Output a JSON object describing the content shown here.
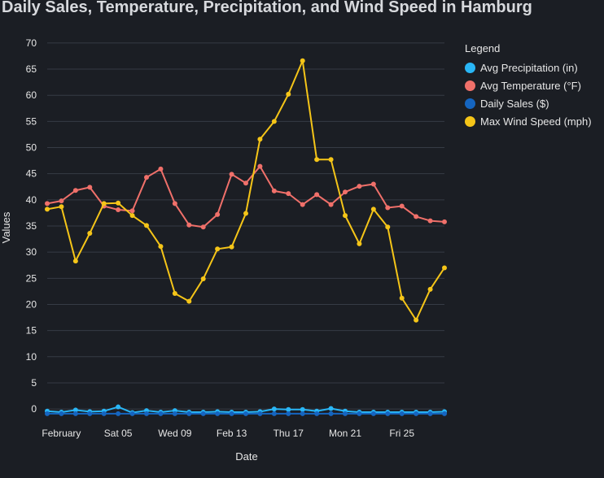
{
  "chart_data": {
    "type": "line",
    "title": "Daily Sales, Temperature, Precipitation, and Wind Speed in Hamburg",
    "xlabel": "Date",
    "ylabel": "Values",
    "ylim": [
      -2,
      72
    ],
    "yticks": [
      0,
      5,
      10,
      15,
      20,
      25,
      30,
      35,
      40,
      45,
      50,
      55,
      60,
      65,
      70
    ],
    "xlim": [
      "2022-01-31",
      "2022-02-28"
    ],
    "xticks": [
      {
        "date": "2022-02-01",
        "label": "February"
      },
      {
        "date": "2022-02-05",
        "label": "Sat 05"
      },
      {
        "date": "2022-02-09",
        "label": "Wed 09"
      },
      {
        "date": "2022-02-13",
        "label": "Feb 13"
      },
      {
        "date": "2022-02-17",
        "label": "Thu 17"
      },
      {
        "date": "2022-02-21",
        "label": "Mon 21"
      },
      {
        "date": "2022-02-25",
        "label": "Fri 25"
      }
    ],
    "grid": true,
    "legend_title": "Legend",
    "legend_position": "right",
    "x": [
      "2022-01-31",
      "2022-02-01",
      "2022-02-02",
      "2022-02-03",
      "2022-02-04",
      "2022-02-05",
      "2022-02-06",
      "2022-02-07",
      "2022-02-08",
      "2022-02-09",
      "2022-02-10",
      "2022-02-11",
      "2022-02-12",
      "2022-02-13",
      "2022-02-14",
      "2022-02-15",
      "2022-02-16",
      "2022-02-17",
      "2022-02-18",
      "2022-02-19",
      "2022-02-20",
      "2022-02-21",
      "2022-02-22",
      "2022-02-23",
      "2022-02-24",
      "2022-02-25",
      "2022-02-26",
      "2022-02-27",
      "2022-02-28"
    ],
    "series": [
      {
        "name": "Avg Precipitation (in)",
        "color": "#29b6f6",
        "values": [
          -0.4,
          -0.6,
          -0.2,
          -0.5,
          -0.4,
          0.4,
          -0.7,
          -0.3,
          -0.6,
          -0.3,
          -0.6,
          -0.6,
          -0.5,
          -0.6,
          -0.6,
          -0.5,
          0.0,
          -0.1,
          -0.1,
          -0.4,
          0.1,
          -0.4,
          -0.6,
          -0.6,
          -0.6,
          -0.6,
          -0.6,
          -0.6,
          -0.5
        ]
      },
      {
        "name": "Avg Temperature (°F)",
        "color": "#f0706a",
        "values": [
          39.3,
          39.8,
          41.8,
          42.4,
          38.8,
          38.1,
          37.9,
          44.3,
          45.9,
          39.3,
          35.2,
          34.8,
          37.2,
          44.9,
          43.2,
          46.4,
          41.7,
          41.2,
          39.1,
          41.0,
          39.1,
          41.5,
          42.6,
          43.0,
          38.5,
          38.8,
          36.8,
          36.0,
          35.8
        ]
      },
      {
        "name": "Daily Sales ($)",
        "color": "#1565c0",
        "values": [
          -0.9,
          -0.9,
          -0.9,
          -0.9,
          -0.9,
          -0.9,
          -0.9,
          -0.9,
          -0.9,
          -0.9,
          -0.9,
          -0.9,
          -0.9,
          -0.9,
          -0.9,
          -0.9,
          -0.9,
          -0.9,
          -0.9,
          -0.9,
          -0.9,
          -0.9,
          -0.9,
          -0.9,
          -0.9,
          -0.9,
          -0.9,
          -0.9,
          -0.9
        ]
      },
      {
        "name": "Max Wind Speed (mph)",
        "color": "#f5c518",
        "values": [
          38.2,
          38.7,
          28.3,
          33.6,
          39.3,
          39.4,
          37.0,
          35.1,
          31.1,
          22.1,
          20.6,
          24.9,
          30.6,
          31.0,
          37.4,
          51.6,
          55.0,
          60.2,
          66.6,
          47.7,
          47.7,
          37.0,
          31.6,
          38.2,
          34.8,
          21.2,
          17.0,
          22.9,
          27.0
        ]
      }
    ]
  }
}
